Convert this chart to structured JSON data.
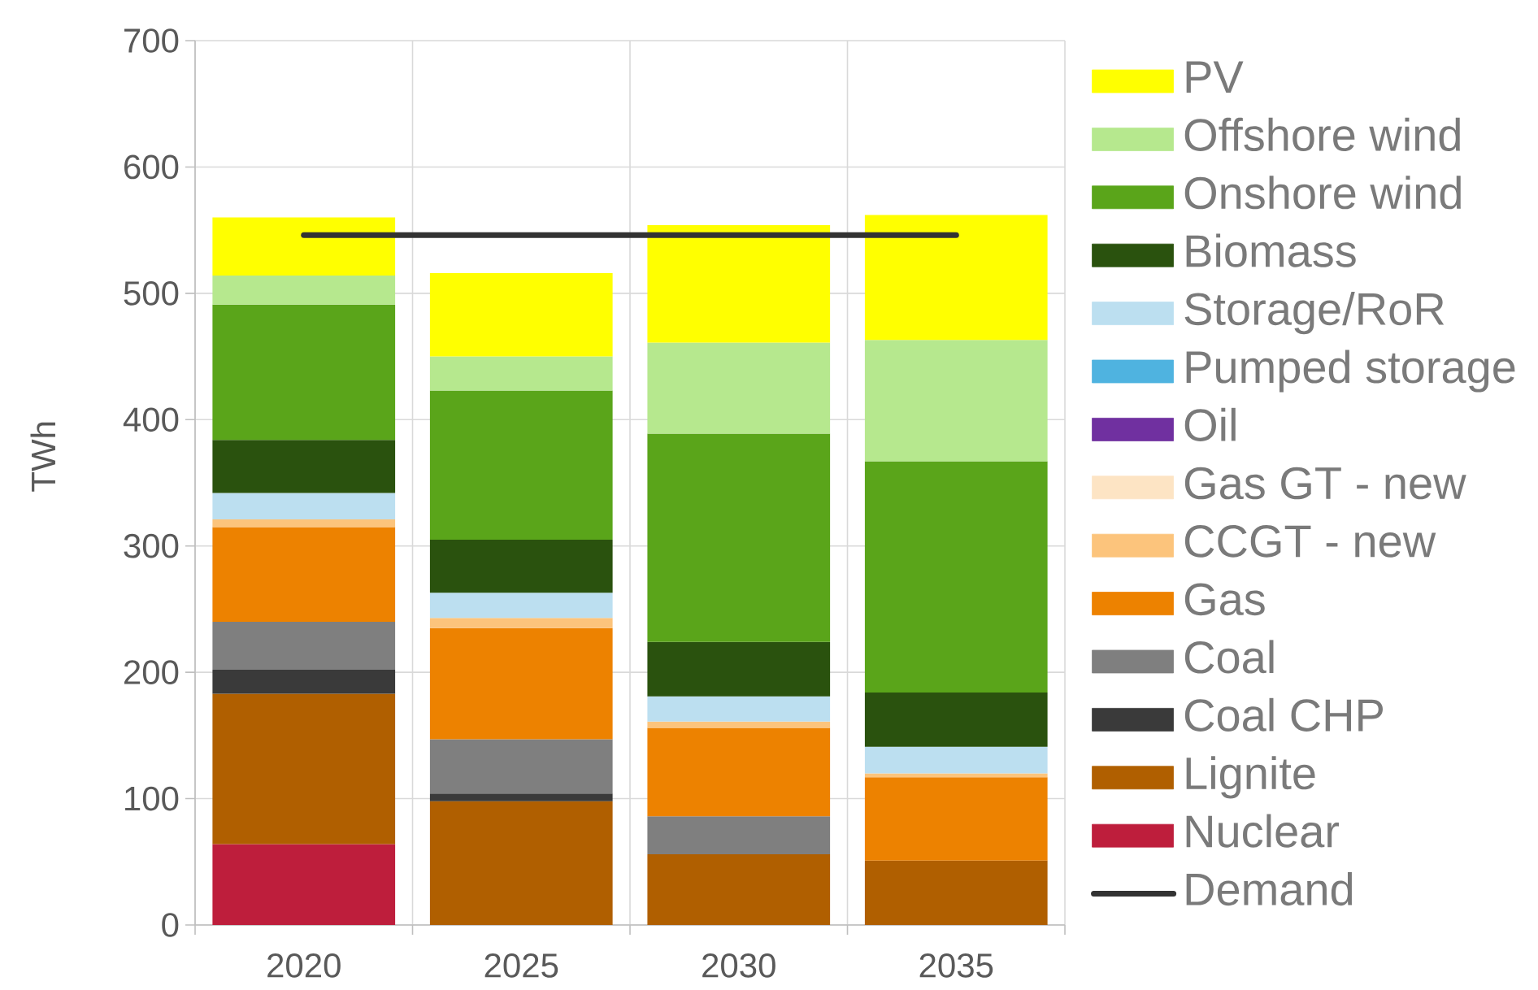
{
  "chart_data": {
    "type": "bar",
    "stacked": true,
    "categories": [
      "2020",
      "2025",
      "2030",
      "2035"
    ],
    "ylabel": "TWh",
    "ylim": [
      0,
      700
    ],
    "yticks": [
      0,
      100,
      200,
      300,
      400,
      500,
      600,
      700
    ],
    "grid": true,
    "legend": "right",
    "series": [
      {
        "name": "Nuclear",
        "color": "#be1e3c",
        "values": [
          64,
          0,
          0,
          0
        ]
      },
      {
        "name": "Lignite",
        "color": "#b05f00",
        "values": [
          119,
          98,
          56,
          51
        ]
      },
      {
        "name": "Coal CHP",
        "color": "#3a3a3a",
        "values": [
          19,
          6,
          0,
          0
        ]
      },
      {
        "name": "Coal",
        "color": "#7f7f7f",
        "values": [
          38,
          43,
          30,
          0
        ]
      },
      {
        "name": "Gas",
        "color": "#ed8200",
        "values": [
          75,
          88,
          70,
          66
        ]
      },
      {
        "name": "CCGT - new",
        "color": "#fcc47c",
        "values": [
          6,
          8,
          5,
          3
        ]
      },
      {
        "name": "Gas GT - new",
        "color": "#fde4c4",
        "values": [
          0,
          0,
          0,
          0
        ]
      },
      {
        "name": "Oil",
        "color": "#7030a0",
        "values": [
          0,
          0,
          0,
          0
        ]
      },
      {
        "name": "Pumped storage",
        "color": "#4fb3e0",
        "values": [
          0,
          0,
          0,
          0
        ]
      },
      {
        "name": "Storage/RoR",
        "color": "#bcdff0",
        "values": [
          21,
          20,
          20,
          21
        ]
      },
      {
        "name": "Biomass",
        "color": "#2a520e",
        "values": [
          42,
          42,
          43,
          43
        ]
      },
      {
        "name": "Onshore wind",
        "color": "#5aa51a",
        "values": [
          107,
          118,
          165,
          183
        ]
      },
      {
        "name": "Offshore wind",
        "color": "#b6e88e",
        "values": [
          23,
          27,
          72,
          96
        ]
      },
      {
        "name": "PV",
        "color": "#ffff00",
        "values": [
          46,
          66,
          93,
          99
        ]
      },
      {
        "name": "Demand",
        "type": "line",
        "color": "#333333",
        "values": [
          546,
          546,
          546,
          546
        ]
      }
    ]
  }
}
